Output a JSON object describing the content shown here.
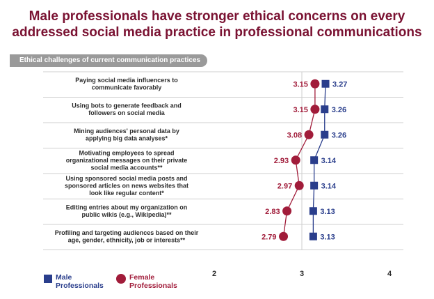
{
  "title_lines": [
    "Male professionals have stronger ethical concerns on every",
    "addressed social media practice in professional communications"
  ],
  "section_label": "Ethical challenges of current communication practices",
  "colors": {
    "male": "#2a3e8c",
    "female": "#a11c3a",
    "title": "#7a1232",
    "tab": "#9a9a9a"
  },
  "chart_data": {
    "type": "scatter",
    "title": "Male professionals have stronger ethical concerns on every addressed social media practice in professional communications",
    "xlim": [
      2,
      4
    ],
    "xticks": [
      "2",
      "3",
      "4"
    ],
    "categories": [
      [
        "Paying social media influencers to",
        "communicate favorably"
      ],
      [
        "Using bots to generate feedback and",
        "followers on social media"
      ],
      [
        "Mining audiences' personal data by",
        "applying big data analyses*"
      ],
      [
        "Motivating employees to spread",
        "organizational messages on their private",
        "social media accounts**"
      ],
      [
        "Using sponsored social media posts and",
        "sponsored articles on news websites that",
        "look like regular content*"
      ],
      [
        "Editing entries about my organization on",
        "public wikis (e.g., Wikipedia)**"
      ],
      [
        "Profiling and targeting audiences based on their",
        "age, gender, ethnicity, job or interests**"
      ]
    ],
    "series": [
      {
        "name": "Female Professionals",
        "values": [
          3.15,
          3.15,
          3.08,
          2.93,
          2.97,
          2.83,
          2.79
        ],
        "labels": [
          "3.15",
          "3.15",
          "3.08",
          "2.93",
          "2.97",
          "2.83",
          "2.79"
        ]
      },
      {
        "name": "Male Professionals",
        "values": [
          3.27,
          3.26,
          3.26,
          3.14,
          3.14,
          3.13,
          3.13
        ],
        "labels": [
          "3.27",
          "3.26",
          "3.26",
          "3.14",
          "3.14",
          "3.13",
          "3.13"
        ]
      }
    ],
    "legend": {
      "placement": "bottom-left",
      "male_lines": [
        "Male",
        "Professionals"
      ],
      "female_lines": [
        "Female",
        "Professionals"
      ]
    }
  }
}
